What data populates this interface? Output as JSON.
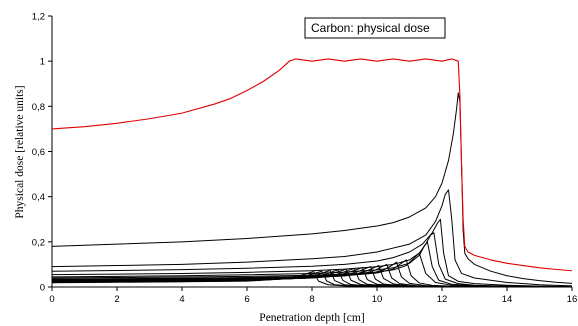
{
  "chart_data": {
    "type": "line",
    "title": "",
    "xlabel": "Penetration depth [cm]",
    "ylabel": "Physical dose [relative units]",
    "xlim": [
      0,
      16
    ],
    "ylim": [
      0,
      1.2
    ],
    "xticks": [
      0,
      2,
      4,
      6,
      8,
      10,
      12,
      14,
      16
    ],
    "xtick_labels": [
      "0",
      "2",
      "4",
      "6",
      "8",
      "10",
      "12",
      "14",
      "16"
    ],
    "yticks": [
      0,
      0.2,
      0.4,
      0.6,
      0.8,
      1,
      1.2
    ],
    "ytick_labels": [
      "0",
      "0,2",
      "0,4",
      "0,6",
      "0,8",
      "1",
      "1,2"
    ],
    "grid": false,
    "legend": {
      "position": "top-right",
      "entries": [
        "Carbon: physical dose"
      ]
    },
    "series": [
      {
        "name": "Carbon: physical dose",
        "color": "#e00000",
        "x": [
          0,
          1,
          2,
          3,
          4,
          5,
          5.5,
          6,
          6.5,
          7,
          7.3,
          7.5,
          8,
          8.5,
          9,
          9.5,
          10,
          10.5,
          11,
          11.5,
          12,
          12.3,
          12.5,
          12.55,
          12.6,
          12.65,
          12.7,
          12.8,
          13,
          13.5,
          14,
          14.5,
          15,
          15.5,
          16
        ],
        "y": [
          0.7,
          0.71,
          0.725,
          0.745,
          0.77,
          0.81,
          0.835,
          0.87,
          0.91,
          0.96,
          1.0,
          1.01,
          1.0,
          1.01,
          1.0,
          1.01,
          1.0,
          1.01,
          1.0,
          1.01,
          1.0,
          1.01,
          1.0,
          0.85,
          0.55,
          0.3,
          0.18,
          0.155,
          0.14,
          0.12,
          0.105,
          0.095,
          0.085,
          0.078,
          0.072
        ]
      },
      {
        "color": "#000000",
        "x": [
          0,
          2,
          4,
          6,
          8,
          9,
          10,
          10.5,
          11,
          11.5,
          11.8,
          12,
          12.2,
          12.35,
          12.45,
          12.5,
          12.55,
          12.6,
          12.65,
          12.7,
          12.8,
          13,
          13.5,
          14,
          14.5,
          15,
          15.5,
          16
        ],
        "y": [
          0.18,
          0.19,
          0.2,
          0.215,
          0.235,
          0.25,
          0.27,
          0.285,
          0.31,
          0.35,
          0.4,
          0.46,
          0.56,
          0.68,
          0.79,
          0.86,
          0.82,
          0.55,
          0.25,
          0.15,
          0.125,
          0.1,
          0.07,
          0.05,
          0.037,
          0.028,
          0.021,
          0.016
        ]
      },
      {
        "color": "#000000",
        "x": [
          0,
          2,
          4,
          6,
          8,
          9,
          10,
          11,
          11.5,
          11.8,
          12,
          12.1,
          12.2,
          12.3,
          12.4,
          12.6,
          13,
          14,
          15,
          16
        ],
        "y": [
          0.09,
          0.095,
          0.1,
          0.11,
          0.125,
          0.135,
          0.155,
          0.19,
          0.23,
          0.29,
          0.36,
          0.41,
          0.43,
          0.3,
          0.12,
          0.06,
          0.04,
          0.02,
          0.01,
          0.005
        ]
      },
      {
        "color": "#000000",
        "x": [
          0,
          2,
          4,
          6,
          8,
          9,
          10,
          10.5,
          11,
          11.4,
          11.7,
          11.85,
          11.95,
          12.05,
          12.2,
          12.5,
          13,
          14,
          15,
          16
        ],
        "y": [
          0.07,
          0.073,
          0.077,
          0.083,
          0.092,
          0.1,
          0.115,
          0.13,
          0.155,
          0.19,
          0.24,
          0.28,
          0.3,
          0.15,
          0.05,
          0.025,
          0.015,
          0.008,
          0.004,
          0.002
        ]
      },
      {
        "color": "#000000",
        "x": [
          0,
          2,
          4,
          6,
          8,
          9,
          10,
          10.5,
          11,
          11.3,
          11.5,
          11.65,
          11.75,
          11.9,
          12.1,
          12.5,
          13,
          14,
          16
        ],
        "y": [
          0.055,
          0.057,
          0.06,
          0.065,
          0.072,
          0.079,
          0.09,
          0.1,
          0.12,
          0.15,
          0.19,
          0.23,
          0.24,
          0.1,
          0.035,
          0.015,
          0.008,
          0.004,
          0.001
        ]
      },
      {
        "color": "#000000",
        "x": [
          0,
          2,
          4,
          6,
          8,
          9,
          10,
          10.5,
          11,
          11.3,
          11.45,
          11.55,
          11.7,
          11.9,
          12.3,
          13,
          14,
          16
        ],
        "y": [
          0.045,
          0.047,
          0.05,
          0.054,
          0.06,
          0.066,
          0.076,
          0.085,
          0.105,
          0.14,
          0.18,
          0.2,
          0.09,
          0.03,
          0.012,
          0.006,
          0.003,
          0.001
        ]
      },
      {
        "color": "#000000",
        "x": [
          0,
          2,
          4,
          6,
          8,
          9,
          10,
          10.5,
          10.9,
          11.15,
          11.3,
          11.5,
          11.8,
          12.3,
          13,
          16
        ],
        "y": [
          0.04,
          0.042,
          0.044,
          0.047,
          0.052,
          0.057,
          0.066,
          0.076,
          0.095,
          0.13,
          0.15,
          0.06,
          0.02,
          0.008,
          0.004,
          0.001
        ]
      },
      {
        "color": "#000000",
        "x": [
          0,
          2,
          4,
          6,
          8,
          9,
          10,
          10.5,
          10.75,
          10.9,
          11.05,
          11.3,
          11.7,
          12.5,
          16
        ],
        "y": [
          0.035,
          0.037,
          0.039,
          0.042,
          0.047,
          0.052,
          0.062,
          0.08,
          0.105,
          0.12,
          0.05,
          0.018,
          0.007,
          0.003,
          0.001
        ]
      },
      {
        "color": "#000000",
        "x": [
          0,
          2,
          4,
          6,
          8,
          9,
          9.8,
          10.2,
          10.45,
          10.6,
          10.75,
          11,
          11.5,
          12.5,
          16
        ],
        "y": [
          0.032,
          0.034,
          0.036,
          0.039,
          0.044,
          0.05,
          0.06,
          0.075,
          0.095,
          0.11,
          0.045,
          0.016,
          0.006,
          0.002,
          0.001
        ]
      },
      {
        "color": "#000000",
        "x": [
          0,
          2,
          4,
          6,
          8,
          9,
          9.6,
          9.95,
          10.15,
          10.3,
          10.45,
          10.7,
          11.2,
          12,
          16
        ],
        "y": [
          0.03,
          0.032,
          0.034,
          0.037,
          0.042,
          0.049,
          0.06,
          0.075,
          0.09,
          0.1,
          0.04,
          0.015,
          0.006,
          0.002,
          0.001
        ]
      },
      {
        "color": "#000000",
        "x": [
          0,
          2,
          4,
          6,
          8,
          9,
          9.4,
          9.7,
          9.9,
          10.05,
          10.2,
          10.5,
          11,
          12,
          16
        ],
        "y": [
          0.028,
          0.03,
          0.032,
          0.035,
          0.041,
          0.05,
          0.06,
          0.072,
          0.085,
          0.095,
          0.038,
          0.014,
          0.005,
          0.002,
          0.001
        ]
      },
      {
        "color": "#000000",
        "x": [
          0,
          2,
          4,
          6,
          8,
          8.8,
          9.2,
          9.45,
          9.65,
          9.8,
          9.95,
          10.2,
          10.8,
          12,
          16
        ],
        "y": [
          0.026,
          0.028,
          0.03,
          0.033,
          0.04,
          0.05,
          0.06,
          0.07,
          0.082,
          0.09,
          0.035,
          0.013,
          0.005,
          0.002,
          0.001
        ]
      },
      {
        "color": "#000000",
        "x": [
          0,
          2,
          4,
          6,
          8,
          8.6,
          8.95,
          9.2,
          9.4,
          9.55,
          9.7,
          10,
          10.6,
          12,
          16
        ],
        "y": [
          0.025,
          0.027,
          0.029,
          0.032,
          0.04,
          0.05,
          0.058,
          0.068,
          0.078,
          0.086,
          0.033,
          0.012,
          0.005,
          0.002,
          0.001
        ]
      },
      {
        "color": "#000000",
        "x": [
          0,
          2,
          4,
          6,
          7.8,
          8.4,
          8.75,
          8.95,
          9.15,
          9.3,
          9.45,
          9.7,
          10.3,
          12,
          16
        ],
        "y": [
          0.024,
          0.026,
          0.028,
          0.031,
          0.039,
          0.048,
          0.056,
          0.065,
          0.075,
          0.082,
          0.032,
          0.012,
          0.005,
          0.002,
          0.001
        ]
      },
      {
        "color": "#000000",
        "x": [
          0,
          2,
          4,
          6,
          7.6,
          8.2,
          8.5,
          8.7,
          8.9,
          9.05,
          9.2,
          9.5,
          10.1,
          12,
          16
        ],
        "y": [
          0.023,
          0.025,
          0.027,
          0.03,
          0.038,
          0.047,
          0.054,
          0.063,
          0.072,
          0.079,
          0.03,
          0.011,
          0.004,
          0.002,
          0.001
        ]
      },
      {
        "color": "#000000",
        "x": [
          0,
          2,
          4,
          6,
          7.4,
          8,
          8.3,
          8.5,
          8.65,
          8.8,
          8.95,
          9.2,
          9.8,
          12,
          16
        ],
        "y": [
          0.022,
          0.024,
          0.026,
          0.029,
          0.037,
          0.046,
          0.052,
          0.06,
          0.069,
          0.076,
          0.029,
          0.011,
          0.004,
          0.002,
          0.001
        ]
      },
      {
        "color": "#000000",
        "x": [
          0,
          2,
          4,
          6,
          7.2,
          7.8,
          8.05,
          8.25,
          8.4,
          8.55,
          8.7,
          9,
          9.6,
          12,
          16
        ],
        "y": [
          0.021,
          0.023,
          0.025,
          0.028,
          0.036,
          0.045,
          0.051,
          0.058,
          0.066,
          0.073,
          0.028,
          0.01,
          0.004,
          0.002,
          0.001
        ]
      },
      {
        "color": "#000000",
        "x": [
          0,
          2,
          4,
          6,
          7,
          7.55,
          7.8,
          8,
          8.15,
          8.3,
          8.45,
          8.7,
          9.3,
          12,
          16
        ],
        "y": [
          0.02,
          0.022,
          0.024,
          0.027,
          0.035,
          0.044,
          0.05,
          0.057,
          0.064,
          0.07,
          0.027,
          0.01,
          0.004,
          0.002,
          0.001
        ]
      },
      {
        "color": "#000000",
        "x": [
          0,
          2,
          4,
          6,
          6.9,
          7.35,
          7.6,
          7.75,
          7.9,
          8.05,
          8.2,
          8.5,
          9.1,
          12,
          16
        ],
        "y": [
          0.019,
          0.021,
          0.023,
          0.026,
          0.034,
          0.043,
          0.049,
          0.055,
          0.062,
          0.068,
          0.026,
          0.01,
          0.004,
          0.002,
          0.001
        ]
      }
    ]
  }
}
